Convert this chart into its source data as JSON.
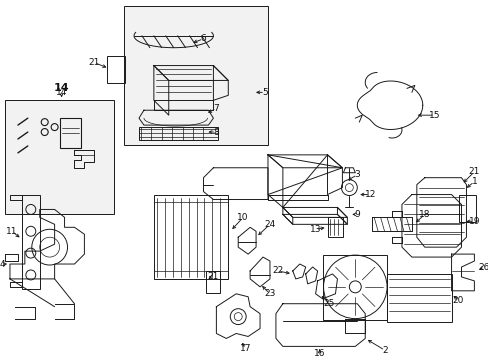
{
  "bg": "#ffffff",
  "lc": "#1a1a1a",
  "lw": 0.7,
  "fig_w": 4.89,
  "fig_h": 3.6,
  "dpi": 100
}
